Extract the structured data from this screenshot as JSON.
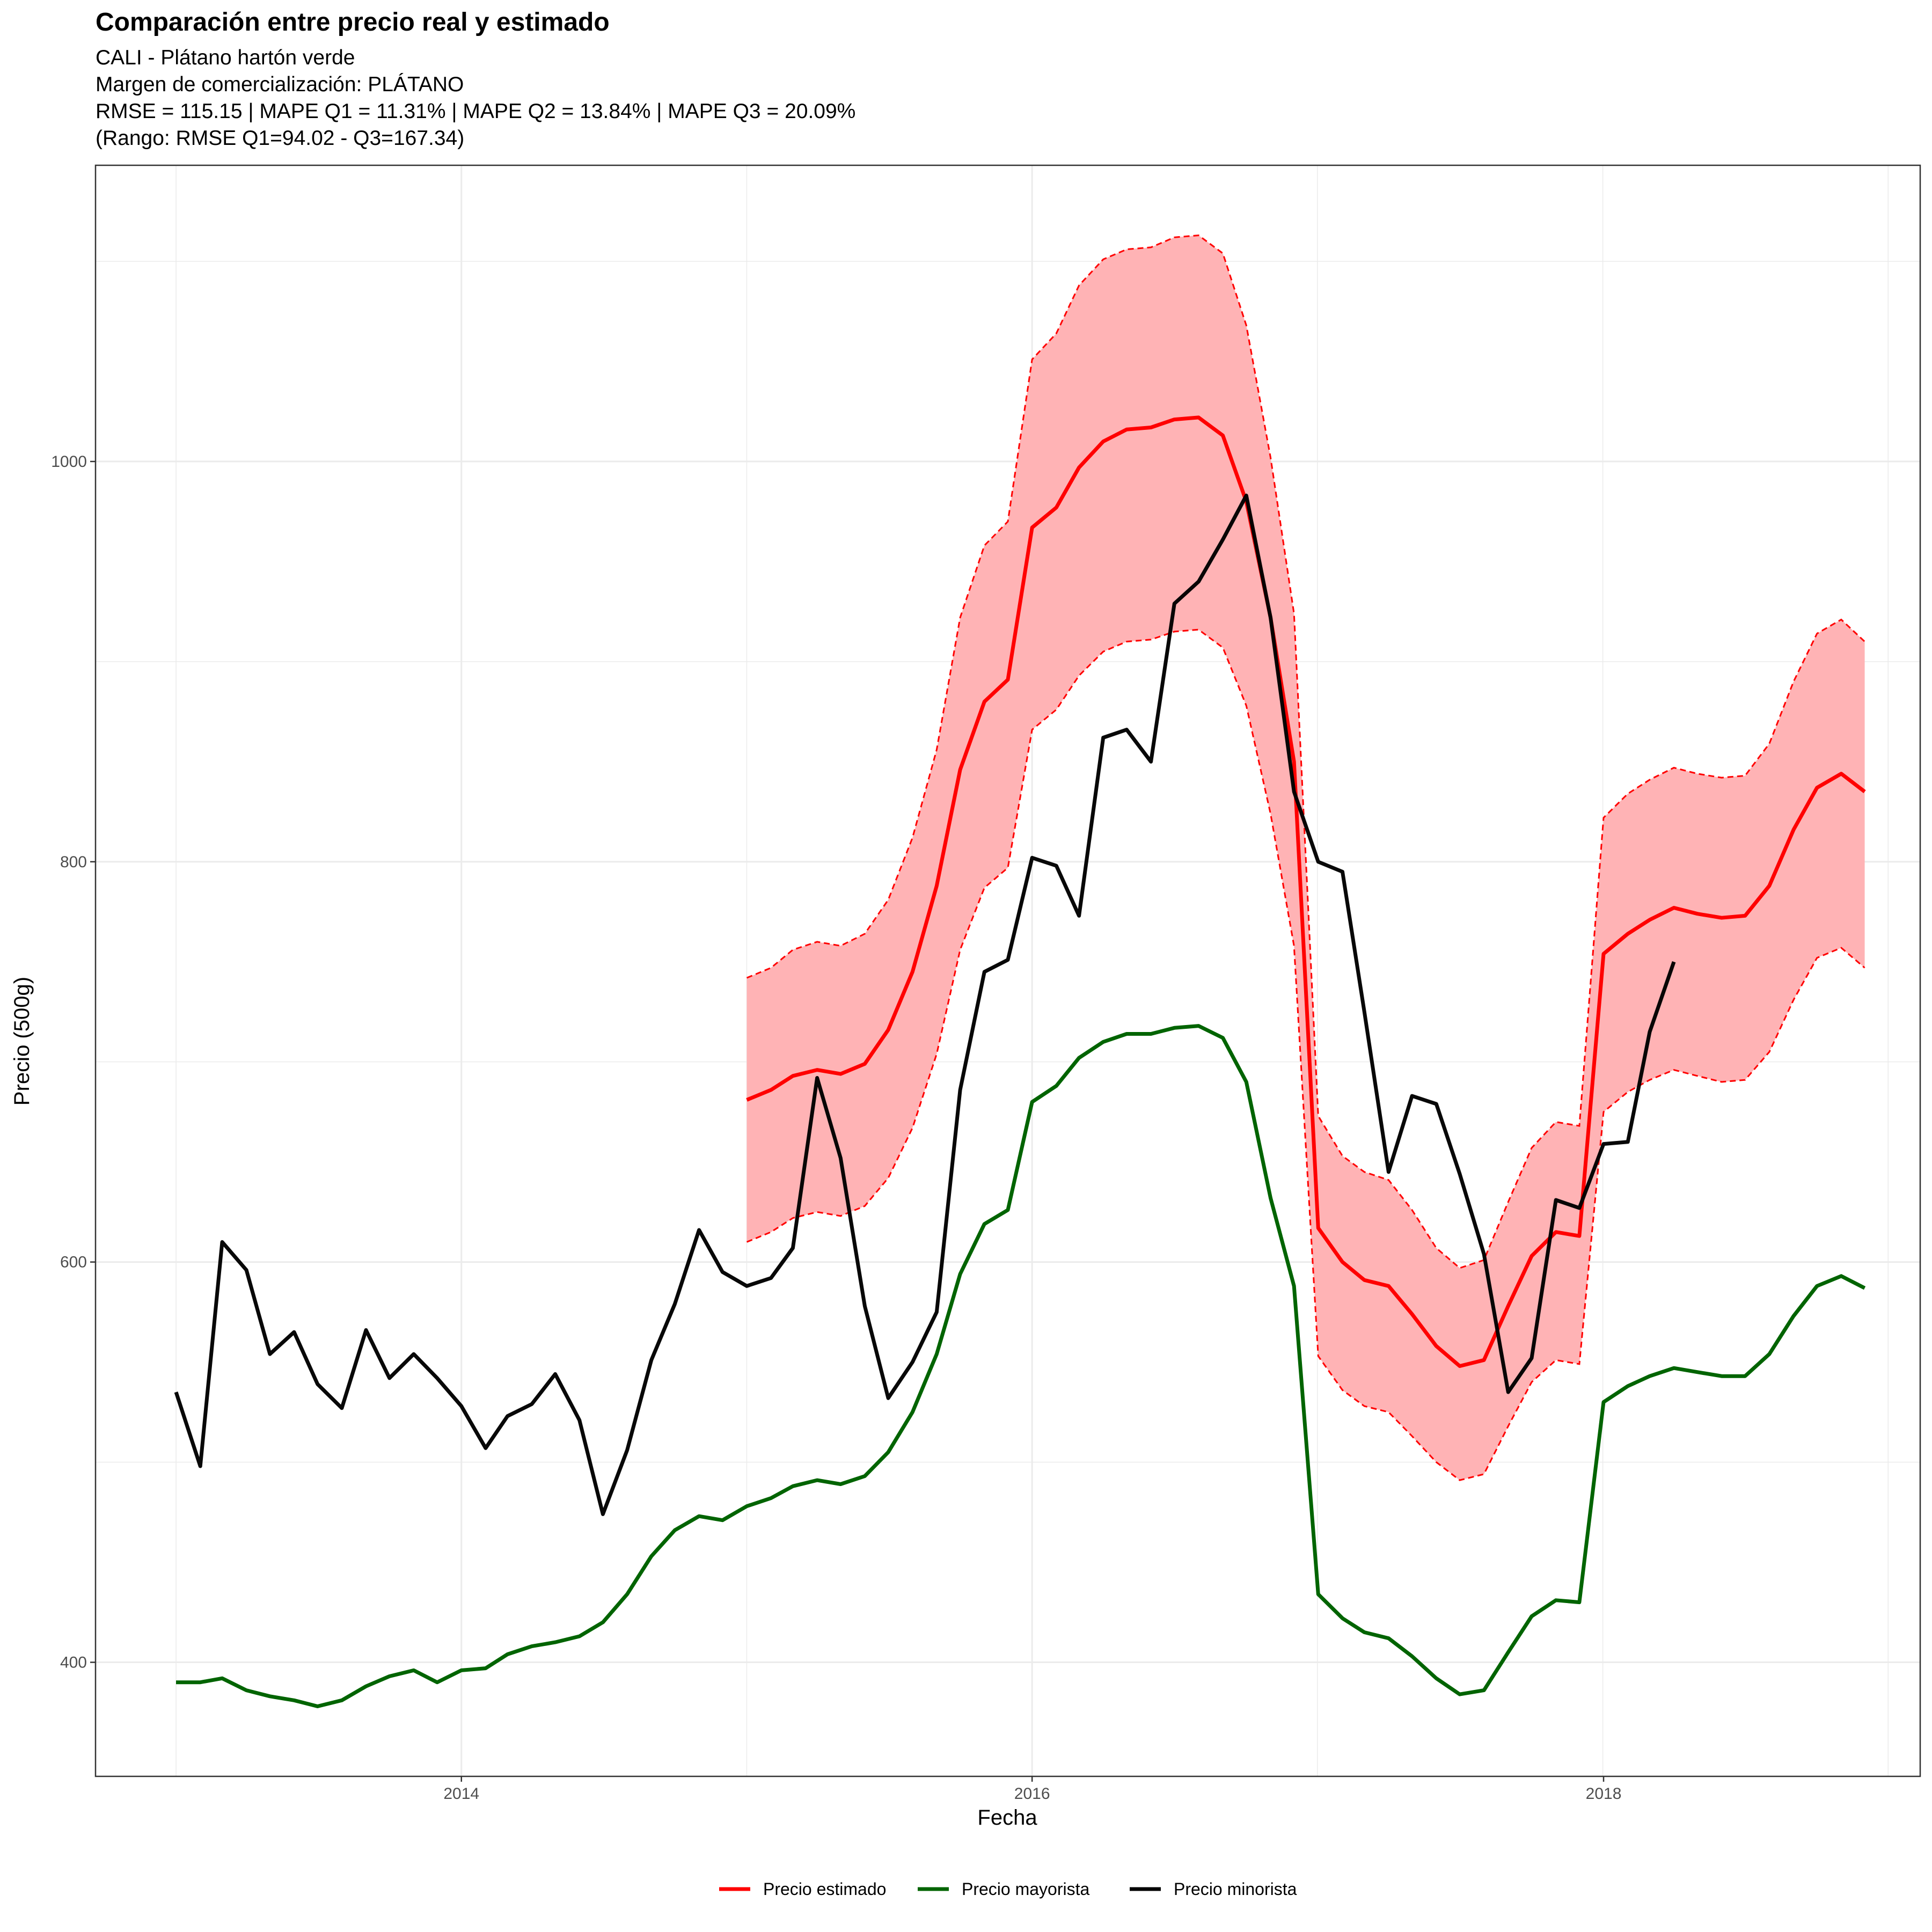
{
  "chart_data": {
    "type": "line",
    "title": "Comparación entre precio real y estimado",
    "subtitle_lines": [
      "CALI - Plátano hartón verde",
      "Margen de comercialización: PLÁTANO",
      "RMSE = 115.15 | MAPE Q1 = 11.31% | MAPE Q2 = 13.84% | MAPE Q3 = 20.09%",
      "(Rango: RMSE Q1=94.02 - Q3=167.34)"
    ],
    "xlabel": "Fecha",
    "ylabel": "Precio (500g)",
    "xlim": [
      "2012-09-20",
      "2019-02-10"
    ],
    "ylim": [
      343,
      1148
    ],
    "x_ticks": [
      "2014-01-01",
      "2016-01-01",
      "2018-01-01"
    ],
    "x_tick_labels": [
      "2014",
      "2016",
      "2018"
    ],
    "y_ticks": [
      400,
      600,
      800,
      1000
    ],
    "y_tick_labels": [
      "400",
      "600",
      "800",
      "1000"
    ],
    "grid": true,
    "legend_position": "bottom",
    "colors": {
      "estimado": "#ff0000",
      "mayorista": "#006400",
      "minorista": "#000000",
      "band": "#ffb3b5"
    },
    "series": [
      {
        "name": "Precio estimado",
        "start": "2015-01-01",
        "values": [
          681,
          686,
          693,
          696,
          694,
          699,
          716,
          745,
          788,
          846,
          880,
          891,
          967,
          977,
          997,
          1010,
          1016,
          1017,
          1021,
          1022,
          1013,
          980,
          922,
          850,
          617,
          600,
          591,
          588,
          574,
          558,
          548,
          551,
          578,
          603,
          615,
          613,
          754,
          764,
          771,
          777,
          774,
          772,
          773,
          788,
          816,
          837,
          844,
          835
        ]
      },
      {
        "name": "Precio mayorista",
        "start": "2013-01-01",
        "values": [
          390,
          390,
          392,
          386,
          383,
          381,
          378,
          381,
          388,
          393,
          396,
          390,
          396,
          397,
          404,
          408,
          410,
          413,
          420,
          434,
          453,
          466,
          473,
          471,
          478,
          482,
          488,
          491,
          489,
          493,
          505,
          525,
          554,
          594,
          619,
          626,
          680,
          688,
          702,
          710,
          714,
          714,
          717,
          718,
          712,
          690,
          632,
          588,
          434,
          422,
          415,
          412,
          403,
          392,
          384,
          386,
          405,
          423,
          431,
          430,
          530,
          538,
          543,
          547,
          545,
          543,
          543,
          554,
          573,
          588,
          593,
          587
        ]
      },
      {
        "name": "Precio minorista",
        "start": "2013-01-01",
        "values": [
          535,
          498,
          610,
          596,
          554,
          565,
          539,
          527,
          566,
          542,
          554,
          542,
          528,
          507,
          523,
          529,
          544,
          521,
          474,
          506,
          551,
          579,
          616,
          595,
          588,
          592,
          607,
          692,
          652,
          578,
          532,
          550,
          575,
          686,
          745,
          751,
          802,
          798,
          773,
          862,
          866,
          850,
          929,
          940,
          961,
          983,
          922,
          835,
          800,
          795,
          725,
          645,
          683,
          679,
          644,
          604,
          535,
          552,
          631,
          627,
          659,
          660,
          715,
          750
        ]
      },
      {
        "name": "Banda estimada",
        "start": "2015-01-01",
        "upper": [
          742,
          747,
          756,
          760,
          758,
          764,
          781,
          812,
          856,
          922,
          958,
          970,
          1051,
          1064,
          1088,
          1101,
          1106,
          1107,
          1112,
          1113,
          1104,
          1068,
          1002,
          924,
          673,
          653,
          645,
          641,
          626,
          607,
          597,
          601,
          630,
          657,
          670,
          668,
          822,
          834,
          841,
          847,
          844,
          842,
          843,
          859,
          890,
          914,
          921,
          910
        ],
        "lower": [
          610,
          615,
          622,
          625,
          623,
          628,
          642,
          667,
          704,
          756,
          787,
          797,
          866,
          876,
          893,
          905,
          910,
          911,
          915,
          916,
          907,
          878,
          824,
          758,
          553,
          536,
          528,
          525,
          513,
          500,
          491,
          494,
          518,
          540,
          551,
          549,
          675,
          685,
          691,
          696,
          693,
          690,
          691,
          705,
          731,
          752,
          757,
          747
        ]
      }
    ]
  }
}
